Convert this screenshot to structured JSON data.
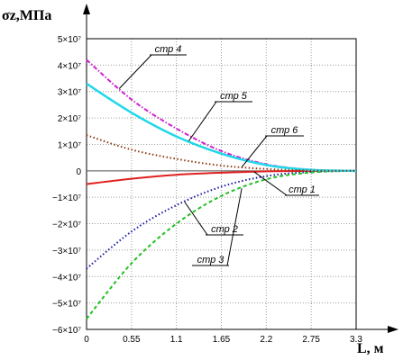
{
  "chart_data": {
    "type": "line",
    "xlabel": "L, м",
    "ylabel": "σz,МПа",
    "xlim": [
      0,
      3.3
    ],
    "ylim": [
      -60000000,
      50000000
    ],
    "x_ticks": [
      "0",
      "0.55",
      "1.1",
      "1.65",
      "2.2",
      "2.75",
      "3.3"
    ],
    "y_ticks": [
      "5×10⁷",
      "4×10⁷",
      "3×10⁷",
      "2×10⁷",
      "1×10⁷",
      "0",
      "−1×10⁷",
      "−2×10⁷",
      "−3×10⁷",
      "−4×10⁷",
      "−5×10⁷",
      "−6×10⁷"
    ],
    "grid": true,
    "x": [
      0,
      0.55,
      1.1,
      1.65,
      2.2,
      2.75,
      3.3
    ],
    "series": [
      {
        "name": "стр 1",
        "color": "#e02020",
        "style": "solid",
        "values": [
          -5000000,
          -3000000,
          -1500000,
          -700000,
          -200000,
          0,
          0
        ]
      },
      {
        "name": "стр 2",
        "color": "#1a1aa6",
        "style": "dotted",
        "values": [
          -37000000,
          -23000000,
          -13000000,
          -6000000,
          -2000000,
          -400000,
          0
        ]
      },
      {
        "name": "стр 3",
        "color": "#22c022",
        "style": "dashed",
        "values": [
          -56000000,
          -35000000,
          -20000000,
          -9500000,
          -3200000,
          -600000,
          0
        ]
      },
      {
        "name": "стр 4",
        "color": "#d020d0",
        "style": "dashdot",
        "values": [
          42000000,
          27000000,
          16000000,
          7500000,
          2500000,
          400000,
          0
        ]
      },
      {
        "name": "стр 5",
        "color": "#20d8e8",
        "style": "solid",
        "values": [
          33000000,
          22000000,
          13000000,
          6500000,
          2200000,
          350000,
          0
        ]
      },
      {
        "name": "стр 6",
        "color": "#8b3a10",
        "style": "dotted",
        "values": [
          13500000,
          8000000,
          4500000,
          2000000,
          700000,
          100000,
          0
        ]
      }
    ],
    "annotations": [
      {
        "text": "стр 4",
        "series": "стр 4",
        "at_x": 0.4
      },
      {
        "text": "стр 5",
        "series": "стр 5",
        "at_x": 1.25
      },
      {
        "text": "стр 6",
        "series": "стр 6",
        "at_x": 1.9
      },
      {
        "text": "стр 1",
        "series": "стр 1",
        "at_x": 2.05
      },
      {
        "text": "стр 2",
        "series": "стр 2",
        "at_x": 1.2
      },
      {
        "text": "стр 3",
        "series": "стр 3",
        "at_x": 1.9
      }
    ]
  }
}
